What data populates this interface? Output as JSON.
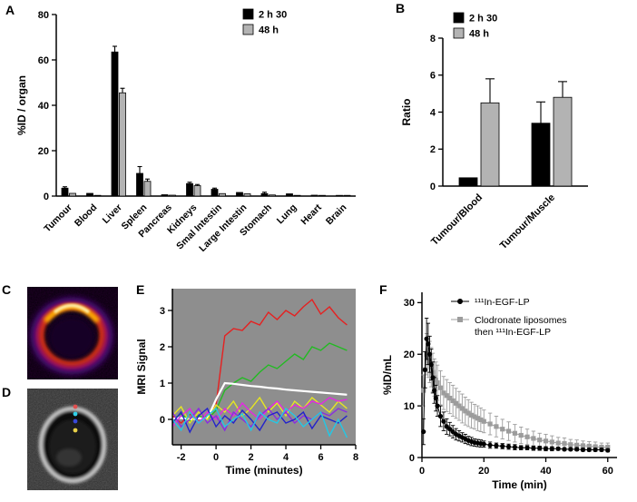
{
  "panel_labels": {
    "A": "A",
    "B": "B",
    "C": "C",
    "D": "D",
    "E": "E",
    "F": "F"
  },
  "images": {
    "D": {
      "roi_marker_colors": [
        "#e05050",
        "#30d0e8",
        "#3848d8",
        "#e8d048"
      ]
    }
  },
  "chart_data": [
    {
      "id": "A",
      "type": "bar",
      "ylabel": "%ID / organ",
      "ylim": [
        0,
        80
      ],
      "yticks": [
        0,
        20,
        40,
        60,
        80
      ],
      "legend_position": "top-right",
      "categories": [
        "Tumour",
        "Blood",
        "Liver",
        "Spleen",
        "Pancreas",
        "Kidneys",
        "Smal Intestin",
        "Large Intestin",
        "Stomach",
        "Lung",
        "Heart",
        "Brain"
      ],
      "series": [
        {
          "name": "2 h 30",
          "color": "#000000",
          "values": [
            3.5,
            1.2,
            63.5,
            10,
            0.6,
            5.5,
            3,
            1.6,
            1.1,
            1.0,
            0.4,
            0.15
          ],
          "errors": [
            0.6,
            0.3,
            2.5,
            3,
            0.2,
            0.6,
            0.5,
            0.4,
            0.6,
            0.3,
            0.1,
            0.05
          ]
        },
        {
          "name": "48 h",
          "color": "#b3b3b3",
          "values": [
            1.2,
            0.2,
            45.5,
            6.5,
            0.4,
            4.6,
            1.1,
            1.0,
            0.5,
            0.3,
            0.2,
            0.1
          ],
          "errors": [
            0.3,
            0.1,
            2.0,
            1.0,
            0.15,
            0.5,
            0.3,
            0.3,
            0.2,
            0.1,
            0.1,
            0.05
          ]
        }
      ]
    },
    {
      "id": "B",
      "type": "bar",
      "ylabel": "Ratio",
      "ylim": [
        0,
        8
      ],
      "yticks": [
        0,
        2,
        4,
        6,
        8
      ],
      "legend_position": "top-left",
      "categories": [
        "Tumour/Blood",
        "Tumour/Muscle"
      ],
      "series": [
        {
          "name": "2 h 30",
          "color": "#000000",
          "values": [
            0.45,
            3.4
          ],
          "errors": [
            0.0,
            1.15
          ]
        },
        {
          "name": "48 h",
          "color": "#b3b3b3",
          "values": [
            4.5,
            4.8
          ],
          "errors": [
            1.3,
            0.85
          ]
        }
      ]
    },
    {
      "id": "E",
      "type": "line",
      "xlabel": "Time (minutes)",
      "ylabel": "MRI Signal",
      "xlim": [
        -2.5,
        8
      ],
      "ylim": [
        -0.7,
        3.6
      ],
      "xticks": [
        -2,
        0,
        2,
        4,
        6,
        8
      ],
      "yticks": [
        0,
        1,
        2,
        3
      ],
      "plot_bg": "#8e8e8e",
      "x": [
        -2.5,
        -2,
        -1.5,
        -1,
        -0.5,
        0,
        0.5,
        1,
        1.5,
        2,
        2.5,
        3,
        3.5,
        4,
        4.5,
        5,
        5.5,
        6,
        6.5,
        7,
        7.5
      ],
      "series": [
        {
          "name": "red",
          "color": "#e62020",
          "values": [
            0.1,
            -0.1,
            0.15,
            0,
            0.1,
            0.4,
            2.3,
            2.5,
            2.45,
            2.7,
            2.6,
            2.95,
            2.75,
            3.0,
            2.85,
            3.1,
            3.3,
            2.9,
            3.1,
            2.8,
            2.6
          ]
        },
        {
          "name": "green",
          "color": "#22bb22",
          "values": [
            0,
            0.15,
            -0.05,
            0.1,
            0,
            0.25,
            0.8,
            1.0,
            1.15,
            1.05,
            1.3,
            1.5,
            1.4,
            1.6,
            1.8,
            1.65,
            2.0,
            1.9,
            2.1,
            2.0,
            1.9
          ]
        },
        {
          "name": "white",
          "color": "#ffffff",
          "width": 2.2,
          "values": [
            0.02,
            0.04,
            0,
            0.03,
            0.02,
            0.55,
            1.0,
            0.98,
            0.95,
            0.92,
            0.9,
            0.87,
            0.85,
            0.82,
            0.8,
            0.78,
            0.76,
            0.74,
            0.72,
            0.7,
            0.68
          ]
        },
        {
          "name": "yellow",
          "color": "#e6e622",
          "values": [
            0.1,
            0.35,
            -0.1,
            0.2,
            0,
            0.4,
            0.2,
            0.5,
            0.1,
            0.3,
            0.6,
            0.2,
            0.45,
            0.1,
            0.5,
            0.3,
            0.6,
            0.4,
            0.2,
            0.5,
            0.3
          ]
        },
        {
          "name": "magenta",
          "color": "#e626e6",
          "values": [
            -0.2,
            0.1,
            0.3,
            -0.1,
            0.2,
            0,
            0.3,
            0.1,
            0.45,
            0.2,
            0,
            0.3,
            0.5,
            0.2,
            0.4,
            0.3,
            0.5,
            0.42,
            0.6,
            0.5,
            0.55
          ]
        },
        {
          "name": "purple",
          "color": "#8a2be2",
          "values": [
            0.2,
            -0.2,
            0,
            0.3,
            -0.1,
            0.1,
            -0.3,
            0.2,
            0,
            -0.2,
            0.1,
            0.3,
            0,
            0.2,
            -0.1,
            0.1,
            0,
            0.2,
            0.1,
            0.3,
            0.2
          ]
        },
        {
          "name": "blue",
          "color": "#2222cc",
          "values": [
            -0.1,
            0.2,
            -0.35,
            0.1,
            0.3,
            -0.2,
            0.1,
            -0.1,
            0.25,
            0,
            -0.3,
            0.1,
            0.2,
            -0.1,
            0,
            0.2,
            -0.25,
            0.1,
            0,
            -0.1,
            0.1
          ]
        },
        {
          "name": "cyan",
          "color": "#22c8e6",
          "values": [
            0,
            -0.3,
            0.2,
            -0.1,
            0.1,
            0.3,
            -0.2,
            0,
            0.15,
            -0.3,
            0.2,
            0,
            -0.1,
            0.3,
            0.1,
            -0.2,
            0,
            0.2,
            -0.45,
            0,
            -0.5
          ]
        }
      ]
    },
    {
      "id": "F",
      "type": "scatter",
      "xlabel": "Time (min)",
      "ylabel": "%ID/mL",
      "xlim": [
        0,
        63
      ],
      "ylim": [
        0,
        32
      ],
      "xticks": [
        0,
        20,
        40,
        60
      ],
      "yticks": [
        0,
        10,
        20,
        30
      ],
      "legend_position": "top-right",
      "series": [
        {
          "name": "¹¹¹In-EGF-LP",
          "name_lines": [
            "¹¹¹In-EGF-LP"
          ],
          "color": "#000000",
          "marker": "circle",
          "x": [
            0.5,
            1,
            1.5,
            2,
            2.5,
            3,
            3.5,
            4,
            4.5,
            5,
            6,
            7,
            8,
            9,
            10,
            11,
            12,
            13,
            14,
            15,
            16,
            17,
            18,
            19,
            20,
            22,
            24,
            26,
            28,
            30,
            32,
            34,
            36,
            38,
            40,
            42,
            44,
            46,
            48,
            50,
            52,
            54,
            56,
            58,
            60
          ],
          "values": [
            5,
            17,
            23,
            22,
            20,
            18,
            15.5,
            13,
            11.5,
            10,
            8,
            7,
            6,
            5.5,
            5,
            4.5,
            4.2,
            3.9,
            3.6,
            3.3,
            3.1,
            2.9,
            2.8,
            2.7,
            2.6,
            2.4,
            2.3,
            2.2,
            2.1,
            2.0,
            1.9,
            1.9,
            1.8,
            1.8,
            1.7,
            1.7,
            1.7,
            1.6,
            1.6,
            1.6,
            1.5,
            1.5,
            1.5,
            1.5,
            1.4
          ],
          "errors": [
            2.5,
            3.5,
            4,
            4,
            3.5,
            3,
            3,
            2.5,
            2.5,
            2,
            2,
            1.8,
            1.5,
            1.3,
            1.2,
            1.1,
            1,
            0.9,
            0.9,
            0.8,
            0.8,
            0.7,
            0.7,
            0.7,
            0.6,
            0.6,
            0.5,
            0.5,
            0.5,
            0.5,
            0.4,
            0.4,
            0.4,
            0.4,
            0.4,
            0.4,
            0.3,
            0.3,
            0.3,
            0.3,
            0.3,
            0.3,
            0.3,
            0.3,
            0.3
          ]
        },
        {
          "name": "Clodronate liposomes then ¹¹¹In-EGF-LP",
          "name_lines": [
            "Clodronate liposomes",
            "then ¹¹¹In-EGF-LP"
          ],
          "color": "#9c9c9c",
          "marker": "square",
          "x": [
            0.5,
            1,
            1.5,
            2,
            2.5,
            3,
            3.5,
            4,
            4.5,
            5,
            6,
            7,
            8,
            9,
            10,
            11,
            12,
            13,
            14,
            15,
            16,
            17,
            18,
            19,
            20,
            22,
            24,
            26,
            28,
            30,
            32,
            34,
            36,
            38,
            40,
            42,
            44,
            46,
            48,
            50,
            52,
            54,
            56,
            58,
            60
          ],
          "values": [
            13,
            17,
            20,
            19.5,
            18.5,
            17.5,
            16.5,
            15.5,
            15,
            14.5,
            13.5,
            12.5,
            12,
            11.5,
            11,
            10.5,
            10,
            9.5,
            9,
            8.6,
            8.2,
            7.9,
            7.6,
            7.3,
            7,
            6.5,
            6,
            5.5,
            5.1,
            4.7,
            4.3,
            4,
            3.7,
            3.4,
            3.2,
            3,
            2.8,
            2.7,
            2.5,
            2.4,
            2.3,
            2.2,
            2.1,
            2,
            2
          ],
          "errors": [
            3,
            3.5,
            4,
            4,
            4,
            3.8,
            3.7,
            3.6,
            3.5,
            3.4,
            3.3,
            3.2,
            3.1,
            3,
            3,
            2.9,
            2.8,
            2.8,
            2.7,
            2.6,
            2.5,
            2.4,
            2.4,
            2.3,
            2.2,
            2.1,
            2,
            1.9,
            1.8,
            1.7,
            1.6,
            1.5,
            1.4,
            1.3,
            1.3,
            1.2,
            1.1,
            1.1,
            1,
            1,
            0.9,
            0.9,
            0.9,
            0.8,
            0.8
          ]
        }
      ]
    }
  ]
}
